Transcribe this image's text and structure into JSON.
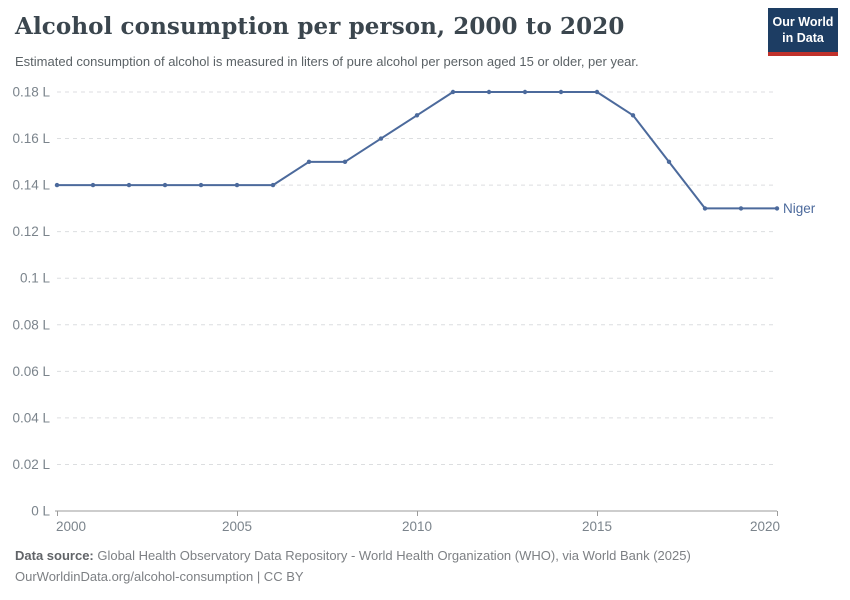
{
  "header": {
    "title": "Alcohol consumption per person, 2000 to 2020",
    "subtitle": "Estimated consumption of alcohol is measured in liters of pure alcohol per person aged 15 or older, per year.",
    "logo": {
      "line1": "Our World",
      "line2": "in Data",
      "bg_color": "#1d3d63",
      "accent_color": "#c0312b"
    }
  },
  "chart_data": {
    "type": "line",
    "title": "Alcohol consumption per person, 2000 to 2020",
    "subtitle": "Estimated consumption of alcohol is measured in liters of pure alcohol per person aged 15 or older, per year.",
    "xlabel": "",
    "ylabel": "",
    "x": [
      2000,
      2001,
      2002,
      2003,
      2004,
      2005,
      2006,
      2007,
      2008,
      2009,
      2010,
      2011,
      2012,
      2013,
      2014,
      2015,
      2016,
      2017,
      2018,
      2019,
      2020
    ],
    "series": [
      {
        "name": "Niger",
        "color": "#4c6a9c",
        "values": [
          0.14,
          0.14,
          0.14,
          0.14,
          0.14,
          0.14,
          0.14,
          0.15,
          0.15,
          0.16,
          0.17,
          0.18,
          0.18,
          0.18,
          0.18,
          0.18,
          0.17,
          0.15,
          0.13,
          0.13,
          0.13
        ]
      }
    ],
    "xlim": [
      2000,
      2020
    ],
    "ylim": [
      0,
      0.18
    ],
    "grid": "horizontal-dashed",
    "legend_position": "end-of-line-label",
    "y_ticks": [
      {
        "value": 0,
        "label": "0 L"
      },
      {
        "value": 0.02,
        "label": "0.02 L"
      },
      {
        "value": 0.04,
        "label": "0.04 L"
      },
      {
        "value": 0.06,
        "label": "0.06 L"
      },
      {
        "value": 0.08,
        "label": "0.08 L"
      },
      {
        "value": 0.1,
        "label": "0.1 L"
      },
      {
        "value": 0.12,
        "label": "0.12 L"
      },
      {
        "value": 0.14,
        "label": "0.14 L"
      },
      {
        "value": 0.16,
        "label": "0.16 L"
      },
      {
        "value": 0.18,
        "label": "0.18 L"
      }
    ],
    "x_ticks": [
      {
        "value": 2000,
        "label": "2000"
      },
      {
        "value": 2005,
        "label": "2005"
      },
      {
        "value": 2010,
        "label": "2010"
      },
      {
        "value": 2015,
        "label": "2015"
      },
      {
        "value": 2020,
        "label": "2020"
      }
    ],
    "colors": {
      "gridline": "#dcdee0",
      "axis": "#9b9b9b",
      "tick_text": "#7b848c"
    }
  },
  "footer": {
    "datasource_label": "Data source:",
    "datasource_text": "Global Health Observatory Data Repository - World Health Organization (WHO), via World Bank (2025)",
    "license_line": "OurWorldinData.org/alcohol-consumption | CC BY"
  }
}
